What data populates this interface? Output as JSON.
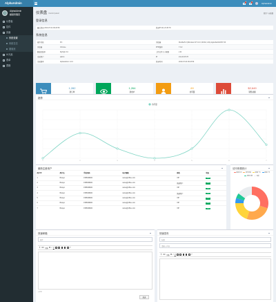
{
  "app": {
    "logo": "AlphaAdmin"
  },
  "user": {
    "name": "AlphaAdmin",
    "status": "超级管理员"
  },
  "header": {
    "msg_badge": "4",
    "notify_badge": "4",
    "username": "AlphaAdmin"
  },
  "sidebar": {
    "items": [
      {
        "label": "仪表板",
        "sub": false,
        "active": false
      },
      {
        "label": "控件",
        "sub": false,
        "active": false
      },
      {
        "label": "页面",
        "sub": false,
        "active": false
      },
      {
        "label": "系统设置",
        "sub": true,
        "active": true
      },
      {
        "label": "系统日志",
        "sub": true,
        "active": false
      },
      {
        "label": "错误页",
        "sub": true,
        "active": false
      },
      {
        "label": "UI元素",
        "sub": false,
        "active": false
      },
      {
        "label": "表单",
        "sub": false,
        "active": false
      },
      {
        "label": "表格",
        "sub": false,
        "active": false
      }
    ]
  },
  "page": {
    "title": "仪表盘",
    "subtitle": "Control panel",
    "breadcrumb": "首页 > 仪表盘"
  },
  "login_section": {
    "title": "登录信息",
    "rows": [
      [
        "最后登录 2019-07-04 09:23:59",
        "登录IP 211.23.45.78"
      ]
    ]
  },
  "system_section": {
    "title": "系统信息",
    "rows": [
      [
        [
          "操作系统",
          "PC"
        ],
        [
          "浏览器",
          "Mozilla/5.0 (Windows NT 10.0; Win64; x64) AppleWebKit/537.36"
        ]
      ],
      [
        [
          "浏览器",
          "Chrome"
        ],
        [
          "PHP版本",
          "7.0.2"
        ]
      ],
      [
        [
          "数据库版本",
          "MySQL 5.6"
        ],
        [
          "上传文件大小限制",
          "2 M"
        ]
      ],
      [
        [
          "当前用户",
          "admin"
        ],
        [
          "IP",
          "211.23.45.78"
        ]
      ],
      [
        [
          "当前版本",
          "AlphaAdmin 1.0.0"
        ],
        [
          "登录时间",
          "2019-07-04 09:23:59"
        ]
      ]
    ]
  },
  "stats": [
    {
      "value": "1,282",
      "label": "新订单",
      "sub": "较昨日",
      "icon": "cart-icon",
      "color": "#3c8dbc"
    },
    {
      "value": "1,264",
      "label": "新用户",
      "sub": "较昨日",
      "icon": "eye-icon",
      "color": "#00a65a"
    },
    {
      "value": "89",
      "label": "访问量",
      "sub": "较昨日",
      "icon": "user-icon",
      "color": "#f39c12"
    },
    {
      "value": "$2,649",
      "label": "销售总额",
      "sub": "较昨日",
      "icon": "chart-icon",
      "color": "#dd4b39"
    }
  ],
  "trend_panel": {
    "title": "趋势"
  },
  "chart_data": {
    "type": "line",
    "x": [
      "1",
      "2",
      "3",
      "4",
      "5",
      "6",
      "7"
    ],
    "series": [
      {
        "name": "访问量",
        "values": [
          0,
          13,
          5,
          0,
          5,
          25,
          7
        ]
      }
    ],
    "ylim": [
      0,
      25
    ],
    "legend": "top-center",
    "grid": true,
    "color": "#7ed4c4"
  },
  "users_panel": {
    "title": "最新注册用户",
    "columns": [
      "用户ID",
      "用户名",
      "手机号码",
      "电子邮箱",
      "角色",
      "状态"
    ],
    "rows": [
      [
        "1",
        "Burayo",
        "1586498484",
        "name@office.com",
        "VIP",
        "正常"
      ],
      [
        "2",
        "Burayo",
        "1586498484",
        "name@office.com",
        "普通用户",
        "正常"
      ],
      [
        "3",
        "Burayo",
        "1586498484",
        "name@office.com",
        "VIP",
        "正常"
      ],
      [
        "4",
        "Burayo",
        "1586498484",
        "name@office.com",
        "普通用户",
        "正常"
      ],
      [
        "5",
        "Burayo",
        "1586498484",
        "name@office.com",
        "VIP",
        "正常"
      ],
      [
        "6",
        "Burayo",
        "1586498484",
        "name@office.com",
        "VIP",
        "正常"
      ],
      [
        "7",
        "Burayo",
        "1586498484",
        "name@office.com",
        "VIP",
        "正常"
      ]
    ]
  },
  "source_panel": {
    "title": "访问来源统计",
    "legend": [
      "直接访问",
      "邮件营销",
      "联盟广告",
      "视频广告",
      "搜索引擎",
      "百度"
    ],
    "values": [
      30,
      25,
      20,
      5,
      5,
      15
    ],
    "colors": [
      "#ff6f61",
      "#ffa94d",
      "#ffd43b",
      "#339af0",
      "#20c997",
      "#e9ecef"
    ]
  },
  "quick_mail": {
    "title": "快速邮箱",
    "to_placeholder": "收件",
    "font_label": "字体",
    "footer": "0 字符",
    "send_label": "发送"
  },
  "quick_post": {
    "title": "快速发布",
    "subject_placeholder": "标题",
    "summary_placeholder": "请输入内容",
    "font_label": "字体"
  }
}
